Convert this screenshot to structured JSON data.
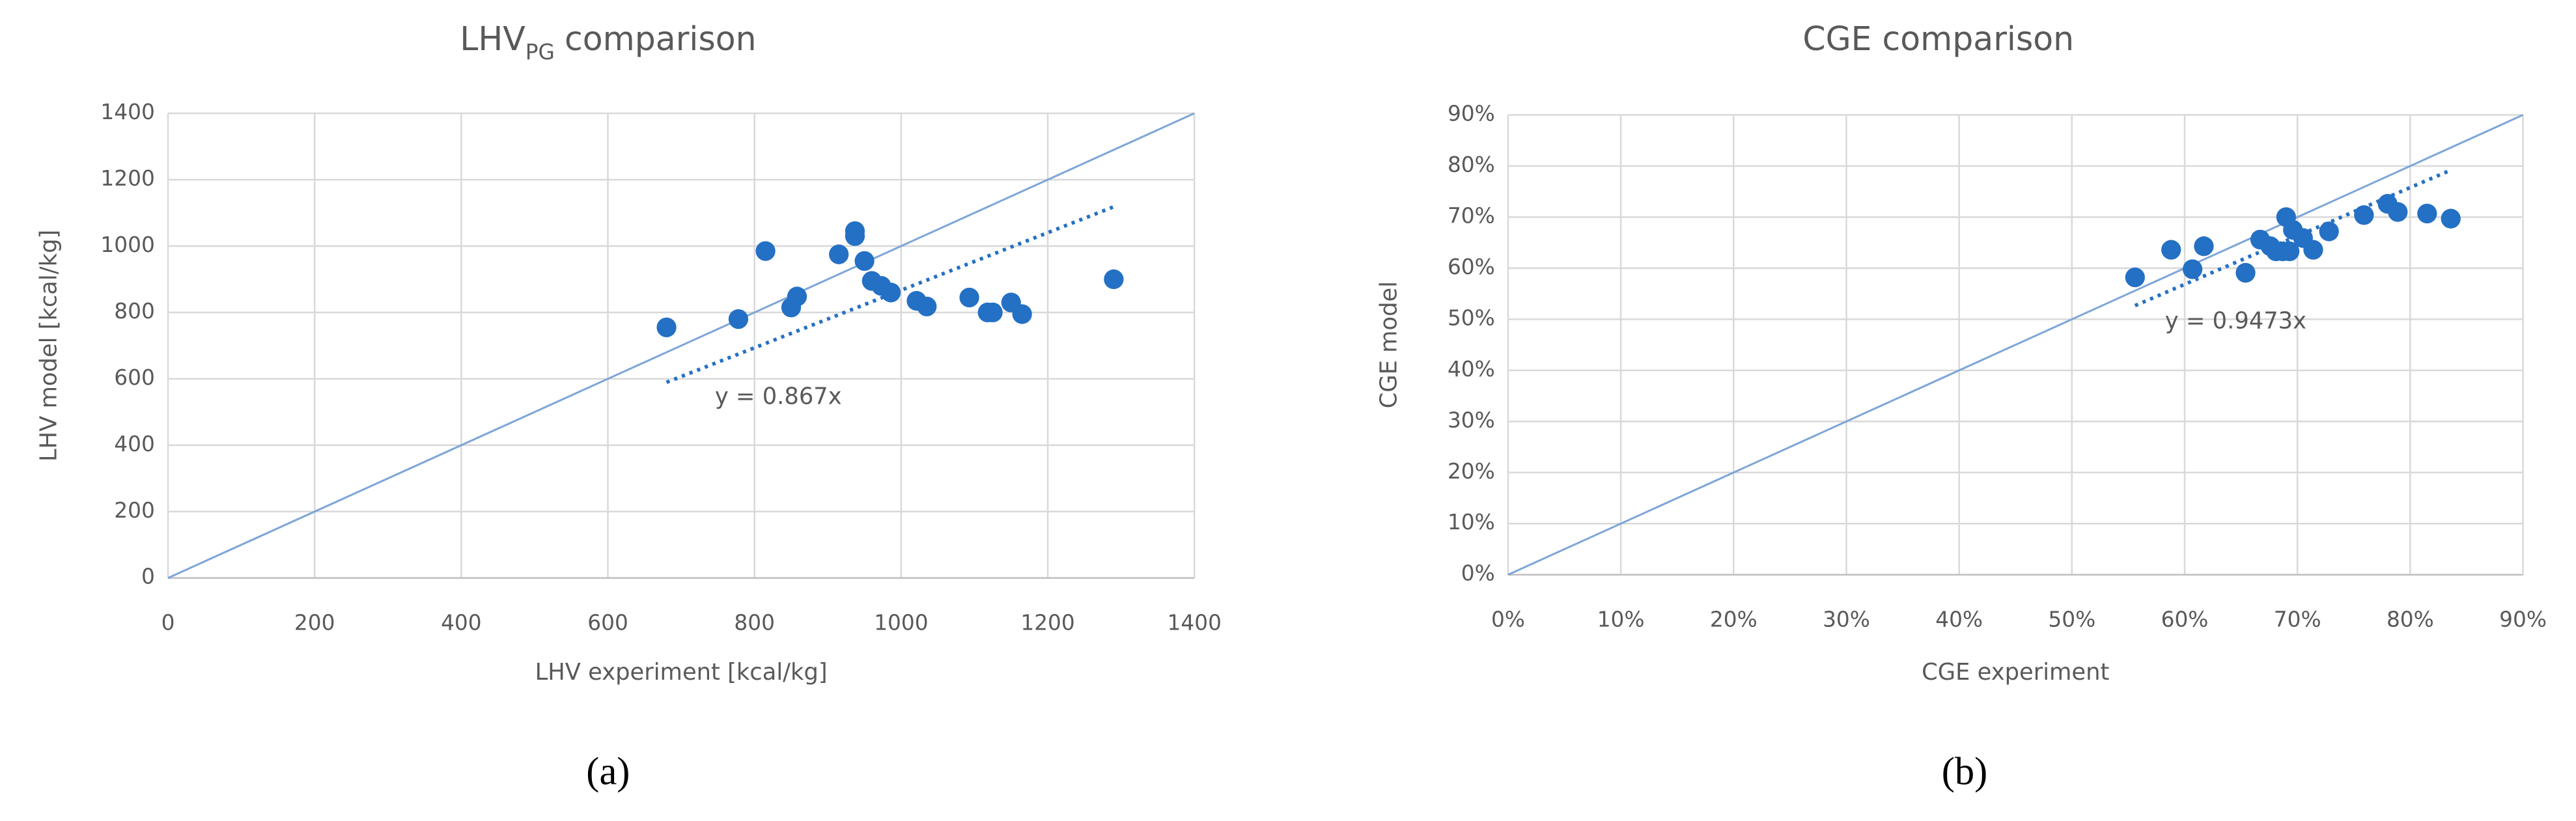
{
  "chart_data": [
    {
      "type": "scatter",
      "title": [
        "LHV",
        "PG",
        "comparison"
      ],
      "xlabel": "LHV experiment  [kcal/kg]",
      "ylabel": "LHV model [kcal/kg]",
      "panel_label": "(a)",
      "x": [
        680,
        778,
        815,
        850,
        858,
        915,
        937,
        937,
        950,
        960,
        973,
        986,
        1021,
        1035,
        1093,
        1118,
        1125,
        1150,
        1165,
        1290
      ],
      "y": [
        755,
        780,
        985,
        815,
        848,
        975,
        1045,
        1030,
        955,
        895,
        880,
        860,
        835,
        818,
        845,
        800,
        800,
        830,
        795,
        900
      ],
      "color": "#2470c4",
      "xlim": [
        0,
        1400
      ],
      "ylim": [
        0,
        1400
      ],
      "xticks": [
        0,
        200,
        400,
        600,
        800,
        1000,
        1200,
        1400
      ],
      "yticks": [
        0,
        200,
        400,
        600,
        800,
        1000,
        1200,
        1400
      ],
      "grid": true,
      "trendline": {
        "slope": 0.867,
        "label": "y = 0.867x"
      }
    },
    {
      "type": "scatter",
      "title": [
        "CGE comparison"
      ],
      "xlabel": "CGE experiment",
      "ylabel": "CGE model",
      "panel_label": "(b)",
      "x": [
        55.6,
        58.8,
        60.7,
        61.7,
        65.4,
        66.7,
        67.6,
        68.1,
        68.7,
        69.3,
        69.0,
        69.6,
        70.5,
        71.4,
        72.8,
        75.9,
        78.0,
        78.9,
        81.5,
        83.6
      ],
      "y": [
        58.2,
        63.6,
        59.8,
        64.3,
        59.1,
        65.6,
        64.3,
        63.3,
        63.3,
        63.3,
        70.0,
        67.5,
        65.9,
        63.6,
        67.2,
        70.4,
        72.6,
        71.0,
        70.7,
        69.7
      ],
      "color": "#2470c4",
      "xlim": [
        0,
        90
      ],
      "ylim": [
        0,
        90
      ],
      "xticks": [
        {
          "value": 0,
          "label": "0%"
        },
        {
          "value": 10,
          "label": "10%"
        },
        {
          "value": 20,
          "label": "20%"
        },
        {
          "value": 30,
          "label": "30%"
        },
        {
          "value": 40,
          "label": "40%"
        },
        {
          "value": 50,
          "label": "50%"
        },
        {
          "value": 60,
          "label": "60%"
        },
        {
          "value": 70,
          "label": "70%"
        },
        {
          "value": 80,
          "label": "80%"
        },
        {
          "value": 90,
          "label": "90%"
        }
      ],
      "yticks": [
        {
          "value": 0,
          "label": "0%"
        },
        {
          "value": 10,
          "label": "10%"
        },
        {
          "value": 20,
          "label": "20%"
        },
        {
          "value": 30,
          "label": "30%"
        },
        {
          "value": 40,
          "label": "40%"
        },
        {
          "value": 50,
          "label": "50%"
        },
        {
          "value": 60,
          "label": "60%"
        },
        {
          "value": 70,
          "label": "70%"
        },
        {
          "value": 80,
          "label": "80%"
        },
        {
          "value": 90,
          "label": "90%"
        }
      ],
      "grid": true,
      "trendline": {
        "slope": 0.9473,
        "label": "y = 0.9473x"
      }
    }
  ]
}
